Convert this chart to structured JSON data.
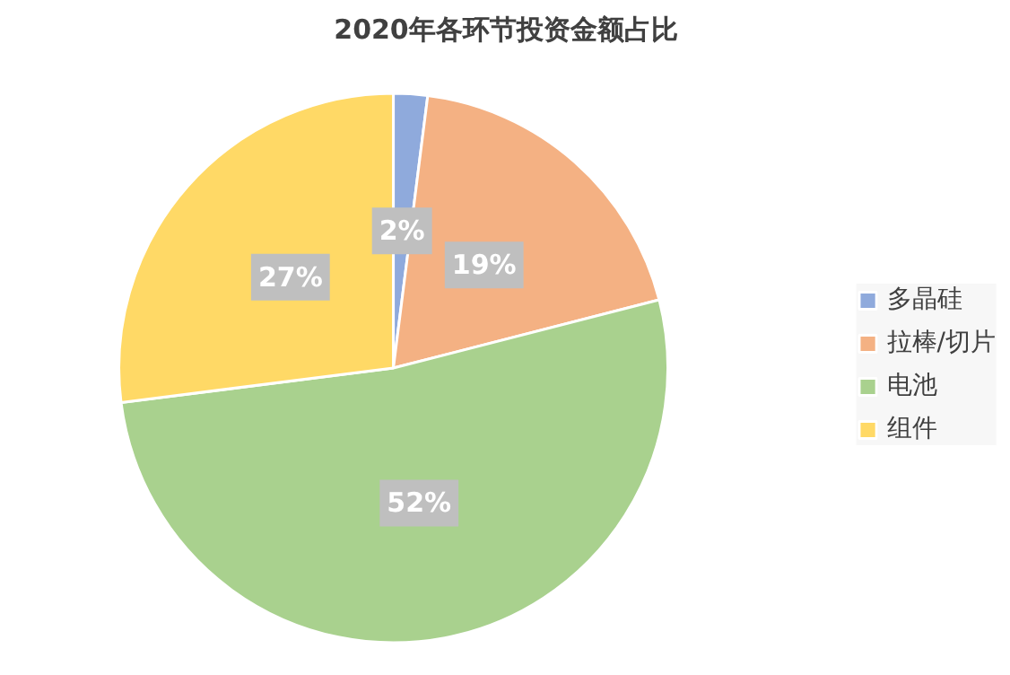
{
  "chart_data": {
    "type": "pie",
    "title": "2020年各环节投资金额占比",
    "categories": [
      "多晶硅",
      "拉棒/切片",
      "电池",
      "组件"
    ],
    "values": [
      2,
      19,
      52,
      27
    ],
    "colors": [
      "#8faadc",
      "#f4b183",
      "#a9d18e",
      "#ffd966"
    ],
    "value_labels": [
      "2%",
      "19%",
      "52%",
      "27%"
    ],
    "legend": "right"
  }
}
